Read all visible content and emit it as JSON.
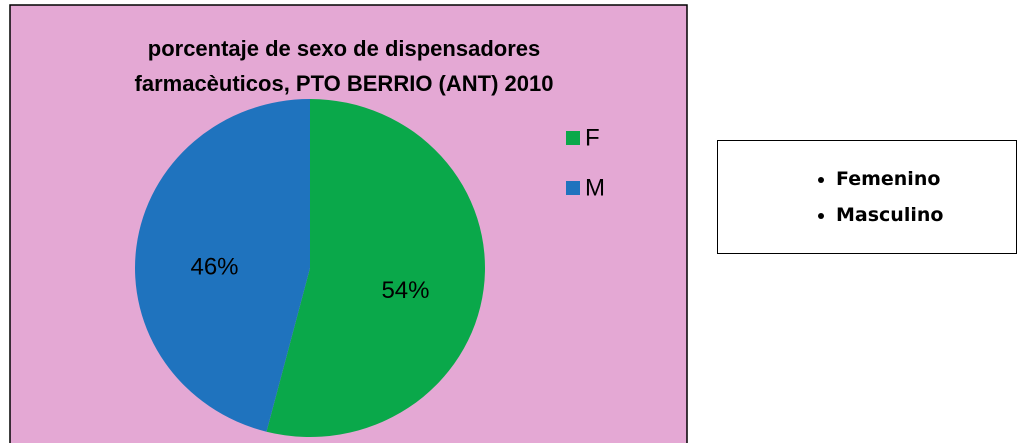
{
  "chart_data": {
    "type": "pie",
    "title": [
      "porcentaje de sexo de dispensadores",
      "farmacèuticos, PTO BERRIO (ANT) 2010"
    ],
    "categories": [
      "F",
      "M"
    ],
    "values": [
      54,
      46
    ],
    "value_labels": [
      "54%",
      "46%"
    ],
    "colors": [
      "#0aa84a",
      "#1f73be"
    ],
    "legend": "right"
  },
  "text_box": {
    "items": [
      "Femenino",
      "Masculino"
    ]
  }
}
